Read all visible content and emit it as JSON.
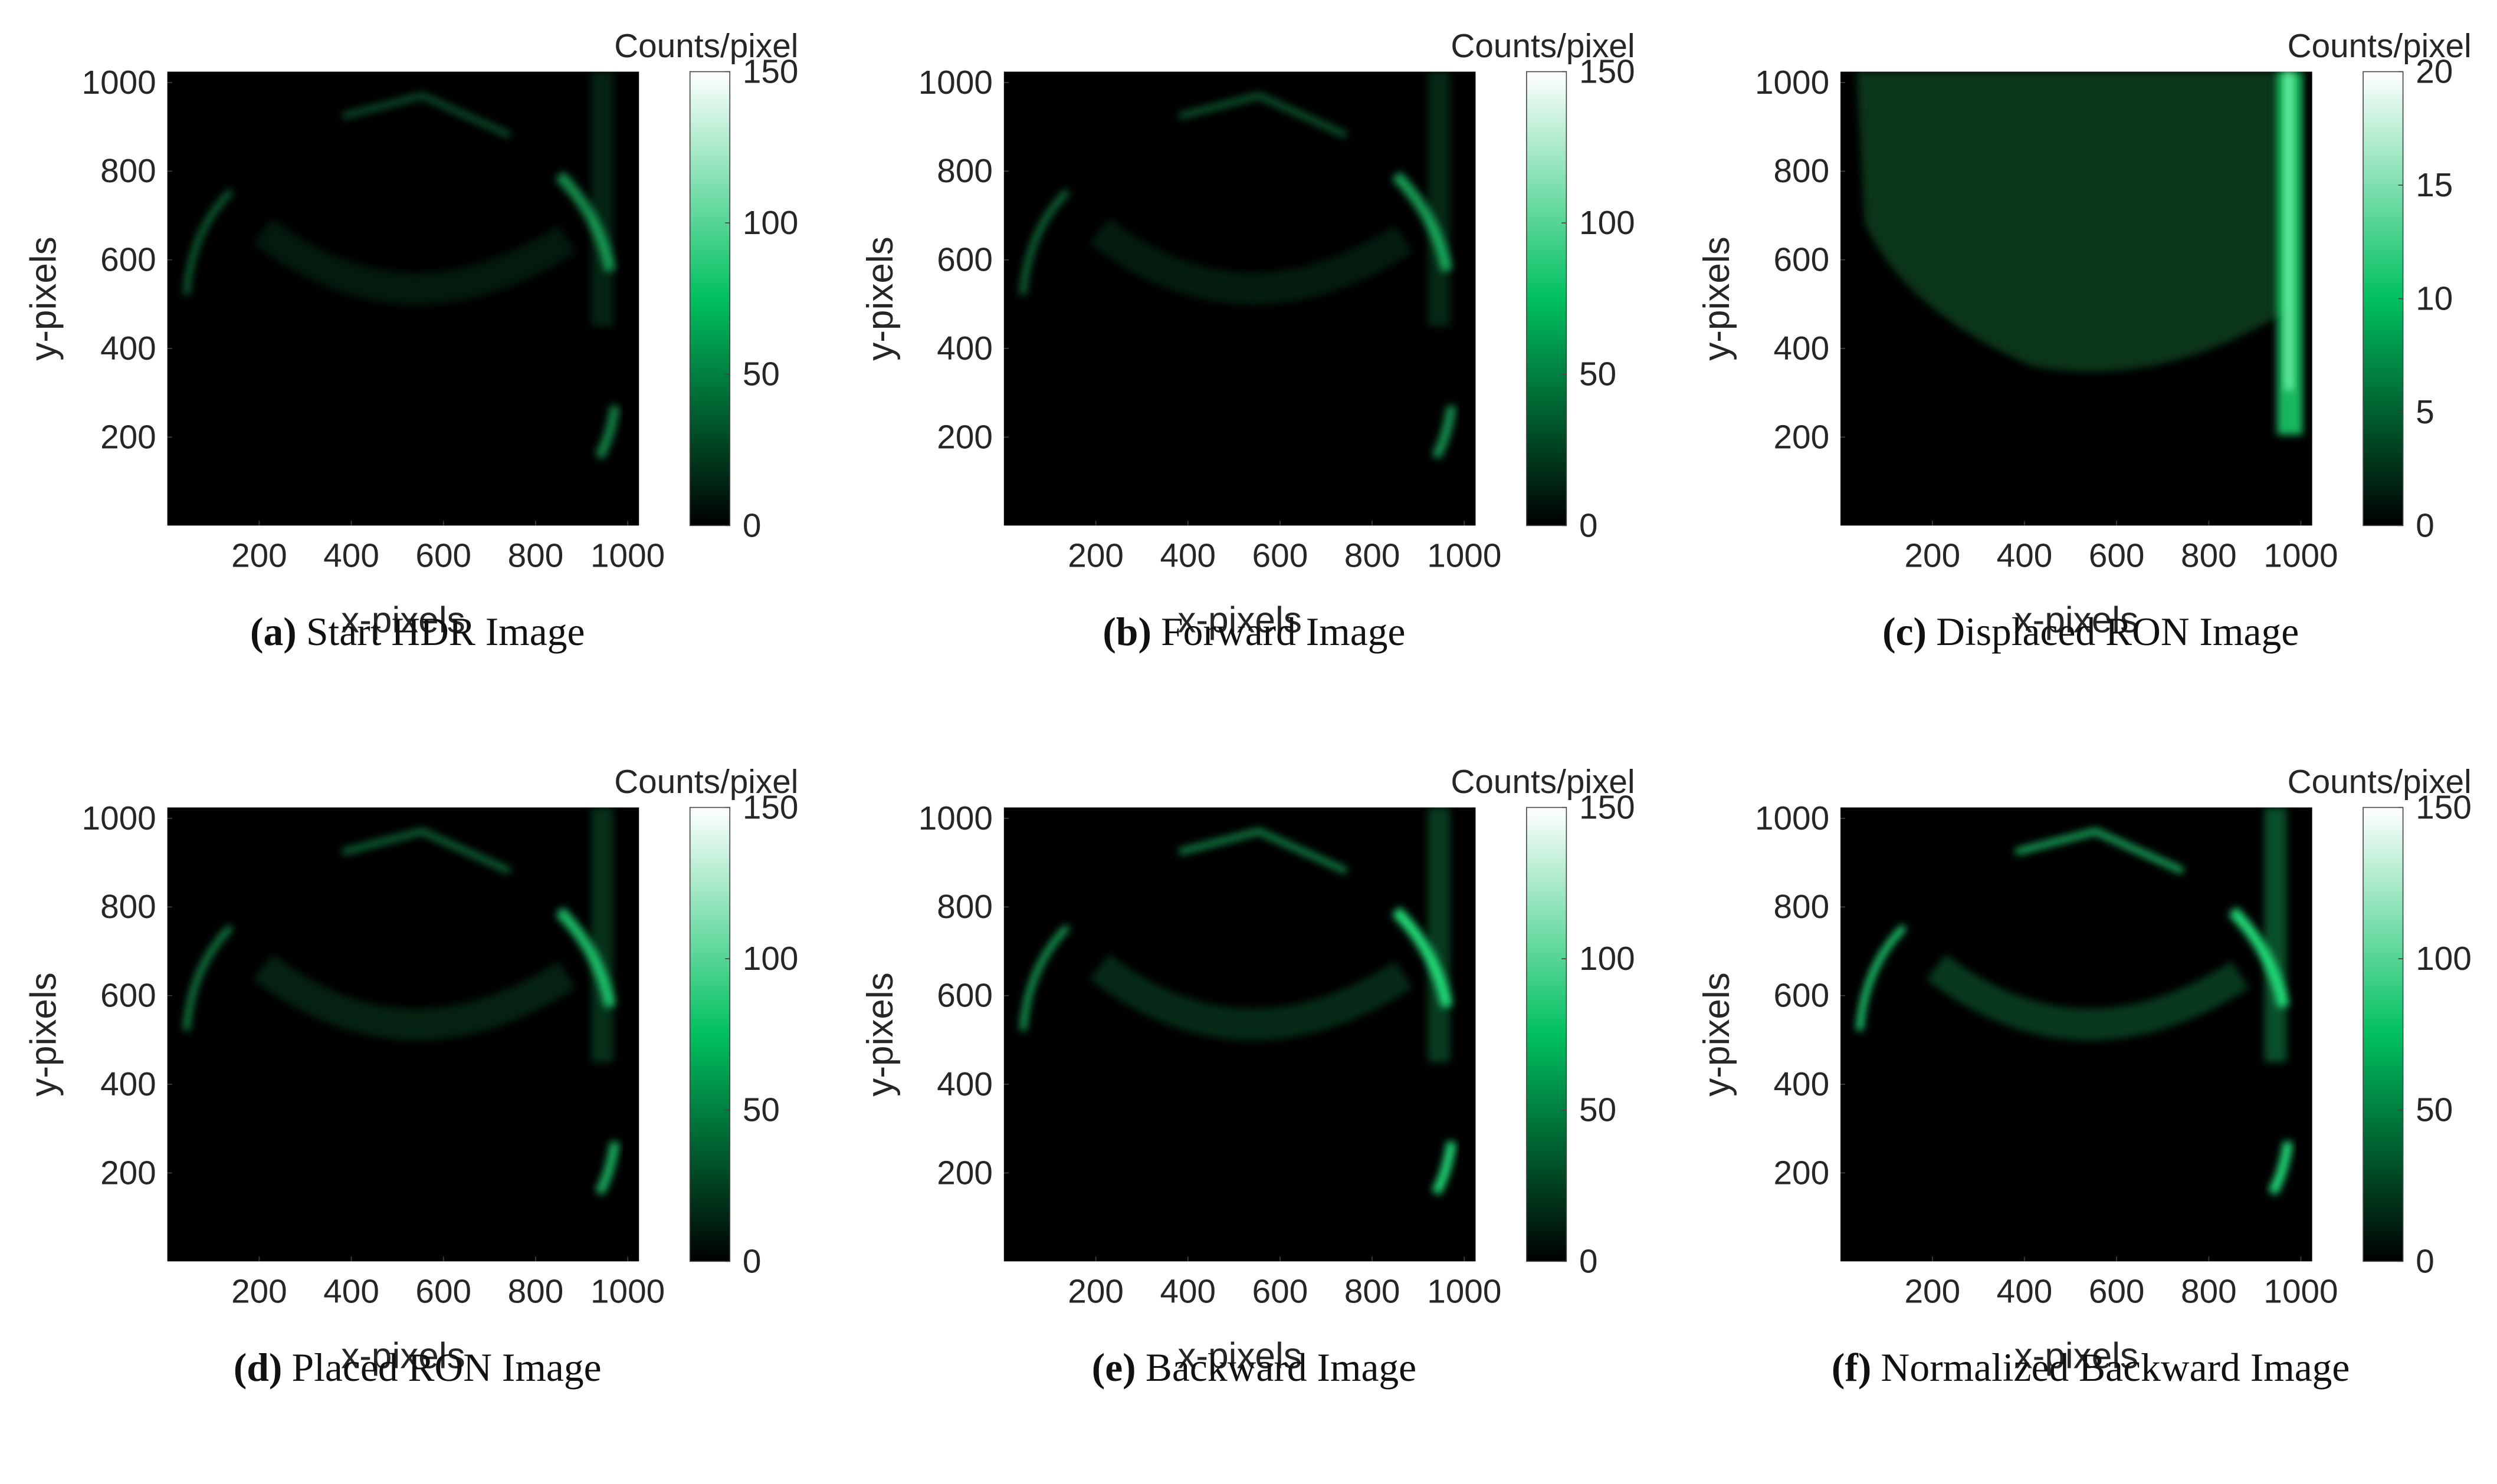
{
  "chart_data": [
    {
      "type": "heatmap",
      "tag": "(a)",
      "caption": "Start HDR Image",
      "xlabel": "x-pixels",
      "ylabel": "y-pixels",
      "colorbar_label": "Counts/pixel",
      "xlim": [
        0.5,
        1024.5
      ],
      "xticks": [
        200,
        400,
        600,
        800,
        1000
      ],
      "ylim": [
        0.5,
        1024.5
      ],
      "yticks": [
        200,
        400,
        600,
        800,
        1000
      ],
      "clim": [
        0,
        150
      ],
      "cticks": [
        0,
        50,
        100,
        150
      ],
      "colormap": [
        "#000000",
        "#00c060",
        "#ffffff"
      ]
    },
    {
      "type": "heatmap",
      "tag": "(b)",
      "caption": "Forward Image",
      "xlabel": "x-pixels",
      "ylabel": "y-pixels",
      "colorbar_label": "Counts/pixel",
      "xlim": [
        0.5,
        1024.5
      ],
      "xticks": [
        200,
        400,
        600,
        800,
        1000
      ],
      "ylim": [
        0.5,
        1024.5
      ],
      "yticks": [
        200,
        400,
        600,
        800,
        1000
      ],
      "clim": [
        0,
        150
      ],
      "cticks": [
        0,
        50,
        100,
        150
      ],
      "colormap": [
        "#000000",
        "#00c060",
        "#ffffff"
      ]
    },
    {
      "type": "heatmap",
      "tag": "(c)",
      "caption": "Displaced RON Image",
      "xlabel": "x-pixels",
      "ylabel": "y-pixels",
      "colorbar_label": "Counts/pixel",
      "xlim": [
        0.5,
        1024.5
      ],
      "xticks": [
        200,
        400,
        600,
        800,
        1000
      ],
      "ylim": [
        0.5,
        1024.5
      ],
      "yticks": [
        200,
        400,
        600,
        800,
        1000
      ],
      "clim": [
        0,
        20
      ],
      "cticks": [
        0,
        5,
        10,
        15,
        20
      ],
      "colormap": [
        "#000000",
        "#00c060",
        "#ffffff"
      ]
    },
    {
      "type": "heatmap",
      "tag": "(d)",
      "caption": "Placed RON Image",
      "xlabel": "x-pixels",
      "ylabel": "y-pixels",
      "colorbar_label": "Counts/pixel",
      "xlim": [
        0.5,
        1024.5
      ],
      "xticks": [
        200,
        400,
        600,
        800,
        1000
      ],
      "ylim": [
        0.5,
        1024.5
      ],
      "yticks": [
        200,
        400,
        600,
        800,
        1000
      ],
      "clim": [
        0,
        150
      ],
      "cticks": [
        0,
        50,
        100,
        150
      ],
      "colormap": [
        "#000000",
        "#00c060",
        "#ffffff"
      ]
    },
    {
      "type": "heatmap",
      "tag": "(e)",
      "caption": "Backward Image",
      "xlabel": "x-pixels",
      "ylabel": "y-pixels",
      "colorbar_label": "Counts/pixel",
      "xlim": [
        0.5,
        1024.5
      ],
      "xticks": [
        200,
        400,
        600,
        800,
        1000
      ],
      "ylim": [
        0.5,
        1024.5
      ],
      "yticks": [
        200,
        400,
        600,
        800,
        1000
      ],
      "clim": [
        0,
        150
      ],
      "cticks": [
        0,
        50,
        100,
        150
      ],
      "colormap": [
        "#000000",
        "#00c060",
        "#ffffff"
      ]
    },
    {
      "type": "heatmap",
      "tag": "(f)",
      "caption": "Normalized Backward Image",
      "xlabel": "x-pixels",
      "ylabel": "y-pixels",
      "colorbar_label": "Counts/pixel",
      "xlim": [
        0.5,
        1024.5
      ],
      "xticks": [
        200,
        400,
        600,
        800,
        1000
      ],
      "ylim": [
        0.5,
        1024.5
      ],
      "yticks": [
        200,
        400,
        600,
        800,
        1000
      ],
      "clim": [
        0,
        150
      ],
      "cticks": [
        0,
        50,
        100,
        150
      ],
      "colormap": [
        "#000000",
        "#00c060",
        "#ffffff"
      ]
    }
  ]
}
